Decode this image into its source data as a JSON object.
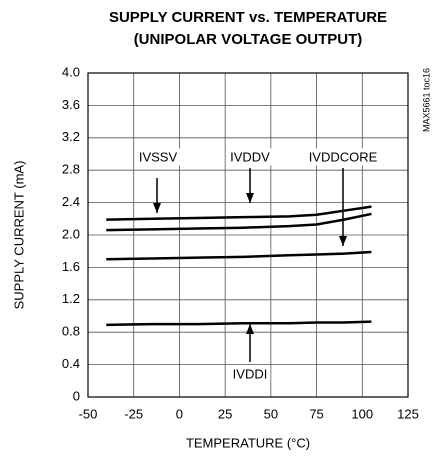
{
  "chart_data": {
    "type": "line",
    "title": "SUPPLY CURRENT vs. TEMPERATURE",
    "subtitle": "(UNIPOLAR VOLTAGE OUTPUT)",
    "xlabel": "TEMPERATURE (°C)",
    "ylabel": "SUPPLY CURRENT (mA)",
    "note": "MAX5661 toc16",
    "xlim": [
      -50,
      125
    ],
    "xticks": [
      -50,
      -25,
      0,
      25,
      50,
      75,
      100,
      125
    ],
    "ylim": [
      0,
      4.0
    ],
    "yticks": [
      0,
      {
        "value": 0.4,
        "label": "0.4"
      },
      {
        "value": 0.8,
        "label": "0.8"
      },
      {
        "value": 1.2,
        "label": "1.2"
      },
      {
        "value": 1.6,
        "label": "1.6"
      },
      {
        "value": 2.0,
        "label": "2.0"
      },
      {
        "value": 2.4,
        "label": "2.4"
      },
      {
        "value": 2.8,
        "label": "2.8"
      },
      {
        "value": 3.2,
        "label": "3.2"
      },
      {
        "value": 3.6,
        "label": "3.6"
      },
      {
        "value": 4.0,
        "label": "4.0"
      }
    ],
    "grid": true,
    "x": [
      -40,
      -15,
      10,
      35,
      60,
      75,
      90,
      105
    ],
    "series": [
      {
        "name": "IVSSV",
        "color": "#000000",
        "values": [
          2.19,
          2.2,
          2.21,
          2.22,
          2.23,
          2.25,
          2.3,
          2.35
        ]
      },
      {
        "name": "IVDDV",
        "color": "#000000",
        "values": [
          2.06,
          2.07,
          2.08,
          2.09,
          2.11,
          2.13,
          2.19,
          2.26
        ]
      },
      {
        "name": "IVDDCORE",
        "color": "#000000",
        "values": [
          1.7,
          1.71,
          1.72,
          1.73,
          1.75,
          1.76,
          1.77,
          1.79
        ]
      },
      {
        "name": "IVDDI",
        "color": "#000000",
        "values": [
          0.89,
          0.9,
          0.9,
          0.91,
          0.91,
          0.92,
          0.92,
          0.93
        ]
      }
    ]
  }
}
